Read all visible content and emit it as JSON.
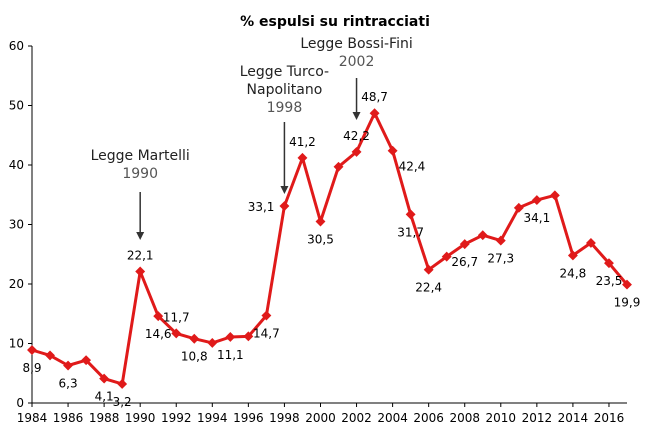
{
  "chart_data": {
    "type": "line",
    "title": "% espulsi su rintracciati",
    "xlabel": "",
    "ylabel": "",
    "xlim": [
      1984,
      2017
    ],
    "ylim": [
      0,
      60
    ],
    "yticks": [
      "0",
      "10",
      "20",
      "30",
      "40",
      "50",
      "60"
    ],
    "xticks": [
      "1984",
      "1986",
      "1988",
      "1990",
      "1992",
      "1994",
      "1996",
      "1998",
      "2000",
      "2002",
      "2004",
      "2006",
      "2008",
      "2010",
      "2012",
      "2014",
      "2016"
    ],
    "grid": false,
    "legend": "none",
    "color": "#e01a1a",
    "series": [
      {
        "x": [
          1984,
          1985,
          1986,
          1987,
          1988,
          1989,
          1990,
          1991,
          1992,
          1993,
          1994,
          1995,
          1996,
          1997,
          1998,
          1999,
          2000,
          2001,
          2002,
          2003,
          2004,
          2005,
          2006,
          2007,
          2008,
          2009,
          2010,
          2011,
          2012,
          2013,
          2014,
          2015,
          2016,
          2017
        ],
        "values": [
          8.9,
          8.0,
          6.3,
          7.2,
          4.1,
          3.2,
          22.1,
          14.6,
          11.7,
          10.8,
          10.1,
          11.1,
          11.2,
          14.7,
          33.1,
          41.2,
          30.5,
          39.7,
          42.2,
          48.7,
          42.4,
          31.7,
          22.4,
          24.6,
          26.7,
          28.2,
          27.3,
          32.8,
          34.1,
          34.9,
          24.8,
          26.9,
          23.5,
          19.9
        ]
      }
    ],
    "data_labels": [
      {
        "x": 1984,
        "y": 8.9,
        "text": "8,9",
        "pos": "below"
      },
      {
        "x": 1986,
        "y": 6.3,
        "text": "6,3",
        "pos": "below"
      },
      {
        "x": 1988,
        "y": 4.1,
        "text": "4,1",
        "pos": "below"
      },
      {
        "x": 1989,
        "y": 3.2,
        "text": "3,2",
        "pos": "below"
      },
      {
        "x": 1990,
        "y": 22.1,
        "text": "22,1",
        "pos": "above"
      },
      {
        "x": 1991,
        "y": 14.6,
        "text": "14,6",
        "pos": "below"
      },
      {
        "x": 1992,
        "y": 11.7,
        "text": "11,7",
        "pos": "above"
      },
      {
        "x": 1993,
        "y": 10.8,
        "text": "10,8",
        "pos": "below"
      },
      {
        "x": 1995,
        "y": 11.1,
        "text": "11,1",
        "pos": "below"
      },
      {
        "x": 1997,
        "y": 14.7,
        "text": "14,7",
        "pos": "below"
      },
      {
        "x": 1998,
        "y": 33.1,
        "text": "33,1",
        "pos": "left"
      },
      {
        "x": 1999,
        "y": 41.2,
        "text": "41,2",
        "pos": "above"
      },
      {
        "x": 2000,
        "y": 30.5,
        "text": "30,5",
        "pos": "below"
      },
      {
        "x": 2002,
        "y": 42.2,
        "text": "42,2",
        "pos": "above"
      },
      {
        "x": 2003,
        "y": 48.7,
        "text": "48,7",
        "pos": "above"
      },
      {
        "x": 2004,
        "y": 42.4,
        "text": "42,4",
        "pos": "right"
      },
      {
        "x": 2005,
        "y": 31.7,
        "text": "31,7",
        "pos": "below"
      },
      {
        "x": 2006,
        "y": 22.4,
        "text": "22,4",
        "pos": "below"
      },
      {
        "x": 2008,
        "y": 26.7,
        "text": "26,7",
        "pos": "below"
      },
      {
        "x": 2010,
        "y": 27.3,
        "text": "27,3",
        "pos": "below"
      },
      {
        "x": 2012,
        "y": 34.1,
        "text": "34,1",
        "pos": "below"
      },
      {
        "x": 2014,
        "y": 24.8,
        "text": "24,8",
        "pos": "below"
      },
      {
        "x": 2016,
        "y": 23.5,
        "text": "23,5",
        "pos": "below"
      },
      {
        "x": 2017,
        "y": 19.9,
        "text": "19,9",
        "pos": "below"
      }
    ],
    "annotations": [
      {
        "lines": [
          "Legge Martelli"
        ],
        "year": "1990",
        "x": 1990,
        "arrow": true
      },
      {
        "lines": [
          "Legge Turco-",
          "Napolitano"
        ],
        "year": "1998",
        "x": 1998,
        "arrow": true
      },
      {
        "lines": [
          "Legge Bossi-Fini"
        ],
        "year": "2002",
        "x": 2002,
        "arrow": true
      }
    ]
  }
}
